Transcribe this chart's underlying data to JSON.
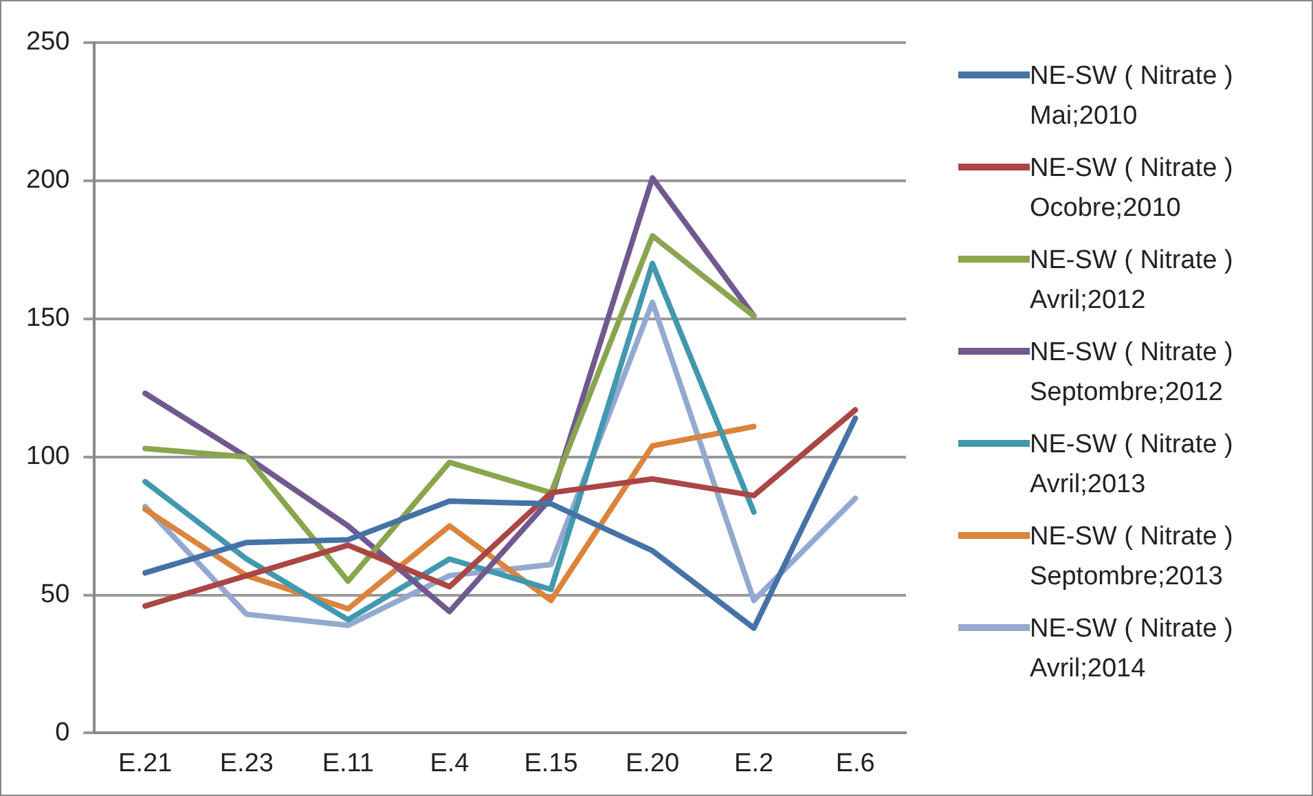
{
  "chart_data": {
    "type": "line",
    "categories": [
      "E.21",
      "E.23",
      "E.11",
      "E.4",
      "E.15",
      "E.20",
      "E.2",
      "E.6"
    ],
    "series": [
      {
        "name": "NE-SW ( Nitrate ) Mai;2010",
        "color": "#4572a7",
        "values": [
          58,
          69,
          70,
          84,
          83,
          66,
          38,
          114
        ]
      },
      {
        "name": "NE-SW ( Nitrate ) Ocobre;2010",
        "color": "#aa4643",
        "values": [
          46,
          57,
          68,
          53,
          87,
          92,
          86,
          117
        ]
      },
      {
        "name": "NE-SW ( Nitrate ) Avril;2012",
        "color": "#89a54e",
        "values": [
          103,
          100,
          55,
          98,
          87,
          180,
          151,
          null
        ]
      },
      {
        "name": "NE-SW ( Nitrate ) Septombre;2012",
        "color": "#71588f",
        "values": [
          123,
          100,
          75,
          44,
          85,
          201,
          151,
          null
        ]
      },
      {
        "name": "NE-SW ( Nitrate ) Avril;2013",
        "color": "#4198af",
        "values": [
          91,
          63,
          41,
          63,
          52,
          170,
          80,
          null
        ]
      },
      {
        "name": "NE-SW ( Nitrate ) Septombre;2013",
        "color": "#db843d",
        "values": [
          81,
          57,
          45,
          75,
          48,
          104,
          111,
          null
        ]
      },
      {
        "name": "NE-SW ( Nitrate ) Avril;2014",
        "color": "#93a9cf",
        "values": [
          82,
          43,
          39,
          57,
          61,
          156,
          48,
          85
        ]
      }
    ],
    "ylim": [
      0,
      250
    ],
    "yticks": [
      0,
      50,
      100,
      150,
      200,
      250
    ],
    "grid": "y",
    "legend": "right",
    "marker": "none",
    "line_style": "solid"
  }
}
